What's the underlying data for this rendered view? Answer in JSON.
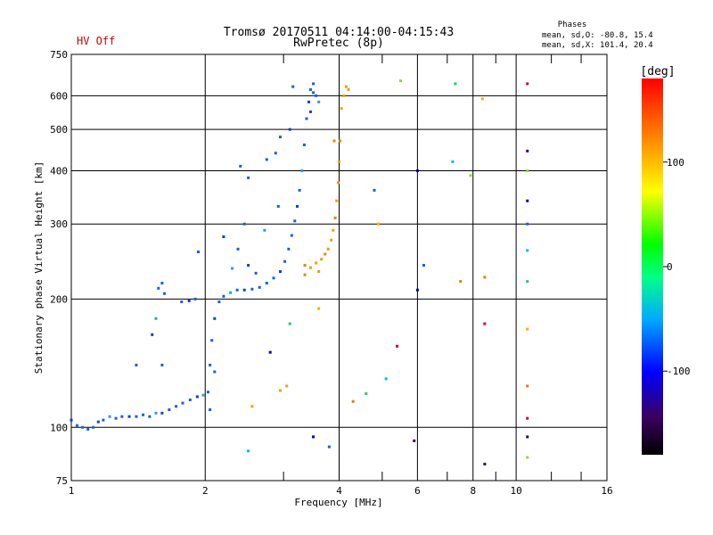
{
  "header": {
    "status": "HV Off",
    "title_line1": "Tromsø 20170511 04:14:00-04:15:43",
    "title_line2": "RwPretec (8p)",
    "phases_title": "Phases",
    "phases_o": "mean, sd,O: -80.8, 15.4",
    "phases_x": "mean, sd,X: 101.4, 20.4"
  },
  "colors": {
    "status": "#cc0000",
    "o_mode": "#1a5fe0",
    "x_mode": "#f0a000",
    "grid": "#000000",
    "colorbar": [
      "#000000",
      "#3a0060",
      "#0000ff",
      "#00aaff",
      "#00ff88",
      "#00ff00",
      "#ffff00",
      "#ff8800",
      "#ff0000"
    ]
  },
  "chart_data": {
    "type": "scatter",
    "title": "Tromsø 20170511 04:14:00-04:15:43",
    "subtitle": "RwPretec (8p)",
    "xlabel": "Frequency [MHz]",
    "ylabel": "Stationary phase Virtual Height [km]",
    "x_scale": "log",
    "y_scale": "log",
    "xlim": [
      1,
      16
    ],
    "ylim": [
      75,
      750
    ],
    "x_ticks": [
      1,
      2,
      4,
      6,
      8,
      10,
      16
    ],
    "x_tick_labels": [
      "1",
      "2",
      "4",
      "6",
      "8",
      "10",
      "16"
    ],
    "y_ticks": [
      75,
      100,
      200,
      300,
      400,
      500,
      600,
      750
    ],
    "y_tick_labels": [
      "75",
      "100",
      "200",
      "300",
      "400",
      "500",
      "600",
      "750"
    ],
    "grid": true,
    "colorbar": {
      "label": "[deg]",
      "min": -180,
      "max": 180,
      "ticks": [
        100,
        0,
        -100
      ],
      "tick_labels": [
        "100",
        "0",
        "-100"
      ]
    },
    "series": [
      {
        "mode": "o",
        "values": [
          [
            1.0,
            104
          ],
          [
            1.03,
            101
          ],
          [
            1.06,
            100
          ],
          [
            1.09,
            99
          ],
          [
            1.12,
            100
          ],
          [
            1.15,
            103
          ],
          [
            1.18,
            104
          ],
          [
            1.22,
            106
          ],
          [
            1.26,
            105
          ],
          [
            1.3,
            106
          ],
          [
            1.35,
            106
          ],
          [
            1.4,
            106
          ],
          [
            1.45,
            107
          ],
          [
            1.5,
            106
          ],
          [
            1.55,
            108
          ],
          [
            1.6,
            108
          ],
          [
            1.66,
            110
          ],
          [
            1.72,
            112
          ],
          [
            1.78,
            114
          ],
          [
            1.85,
            116
          ],
          [
            1.92,
            118
          ],
          [
            1.98,
            119
          ],
          [
            2.03,
            121
          ],
          [
            2.05,
            140
          ],
          [
            2.07,
            160
          ],
          [
            2.1,
            180
          ],
          [
            2.15,
            197
          ],
          [
            2.2,
            203
          ],
          [
            2.28,
            207
          ],
          [
            2.36,
            210
          ],
          [
            2.45,
            210
          ],
          [
            2.55,
            211
          ],
          [
            2.65,
            213
          ],
          [
            2.75,
            218
          ],
          [
            2.85,
            224
          ],
          [
            2.95,
            232
          ],
          [
            3.02,
            245
          ],
          [
            3.08,
            262
          ],
          [
            3.13,
            282
          ],
          [
            3.18,
            305
          ],
          [
            3.22,
            330
          ],
          [
            3.26,
            360
          ],
          [
            3.3,
            400
          ],
          [
            3.34,
            460
          ],
          [
            3.38,
            530
          ],
          [
            3.42,
            580
          ],
          [
            3.45,
            620
          ],
          [
            3.5,
            610
          ],
          [
            3.55,
            600
          ],
          [
            3.6,
            580
          ],
          [
            3.45,
            550
          ],
          [
            3.5,
            640
          ],
          [
            1.57,
            212
          ],
          [
            1.6,
            218
          ],
          [
            1.62,
            206
          ],
          [
            1.52,
            165
          ],
          [
            1.55,
            180
          ],
          [
            1.6,
            140
          ],
          [
            1.4,
            140
          ],
          [
            1.77,
            197
          ],
          [
            1.84,
            198
          ],
          [
            1.9,
            200
          ],
          [
            1.93,
            258
          ],
          [
            2.3,
            236
          ],
          [
            2.37,
            262
          ],
          [
            2.5,
            240
          ],
          [
            2.6,
            230
          ],
          [
            2.75,
            425
          ],
          [
            2.88,
            440
          ],
          [
            2.95,
            480
          ],
          [
            3.1,
            500
          ],
          [
            3.15,
            630
          ],
          [
            2.92,
            330
          ],
          [
            2.5,
            385
          ],
          [
            2.4,
            410
          ],
          [
            2.2,
            280
          ],
          [
            2.45,
            300
          ],
          [
            2.72,
            290
          ],
          [
            2.1,
            135
          ],
          [
            2.05,
            110
          ]
        ]
      },
      {
        "mode": "x",
        "values": [
          [
            3.35,
            240
          ],
          [
            3.45,
            237
          ],
          [
            3.55,
            243
          ],
          [
            3.65,
            248
          ],
          [
            3.72,
            255
          ],
          [
            3.78,
            262
          ],
          [
            3.84,
            275
          ],
          [
            3.88,
            290
          ],
          [
            3.92,
            310
          ],
          [
            3.95,
            340
          ],
          [
            3.98,
            375
          ],
          [
            4.0,
            420
          ],
          [
            4.02,
            470
          ],
          [
            4.05,
            560
          ],
          [
            4.1,
            600
          ],
          [
            4.15,
            630
          ],
          [
            3.9,
            470
          ],
          [
            2.95,
            122
          ],
          [
            3.05,
            125
          ],
          [
            2.55,
            112
          ],
          [
            3.35,
            228
          ],
          [
            3.6,
            232
          ],
          [
            4.2,
            620
          ]
        ]
      },
      {
        "mode": "scattered",
        "values": [
          [
            6.0,
            400
          ],
          [
            6.2,
            240
          ],
          [
            7.2,
            420
          ],
          [
            7.3,
            640
          ],
          [
            8.4,
            590
          ],
          [
            8.5,
            225
          ],
          [
            8.5,
            175
          ],
          [
            8.5,
            82
          ],
          [
            5.5,
            650
          ],
          [
            6.0,
            210
          ],
          [
            4.8,
            360
          ],
          [
            5.1,
            130
          ],
          [
            4.6,
            120
          ],
          [
            4.9,
            300
          ],
          [
            7.5,
            220
          ],
          [
            10.6,
            640
          ],
          [
            10.6,
            445
          ],
          [
            10.6,
            400
          ],
          [
            10.6,
            340
          ],
          [
            10.6,
            300
          ],
          [
            10.6,
            260
          ],
          [
            10.6,
            220
          ],
          [
            10.6,
            170
          ],
          [
            10.6,
            125
          ],
          [
            10.6,
            105
          ],
          [
            10.6,
            95
          ],
          [
            10.6,
            85
          ],
          [
            3.5,
            95
          ],
          [
            3.8,
            90
          ],
          [
            2.5,
            88
          ],
          [
            3.1,
            175
          ],
          [
            3.6,
            190
          ],
          [
            4.3,
            115
          ],
          [
            5.4,
            155
          ],
          [
            5.9,
            93
          ],
          [
            7.9,
            390
          ],
          [
            2.8,
            150
          ]
        ]
      }
    ]
  }
}
